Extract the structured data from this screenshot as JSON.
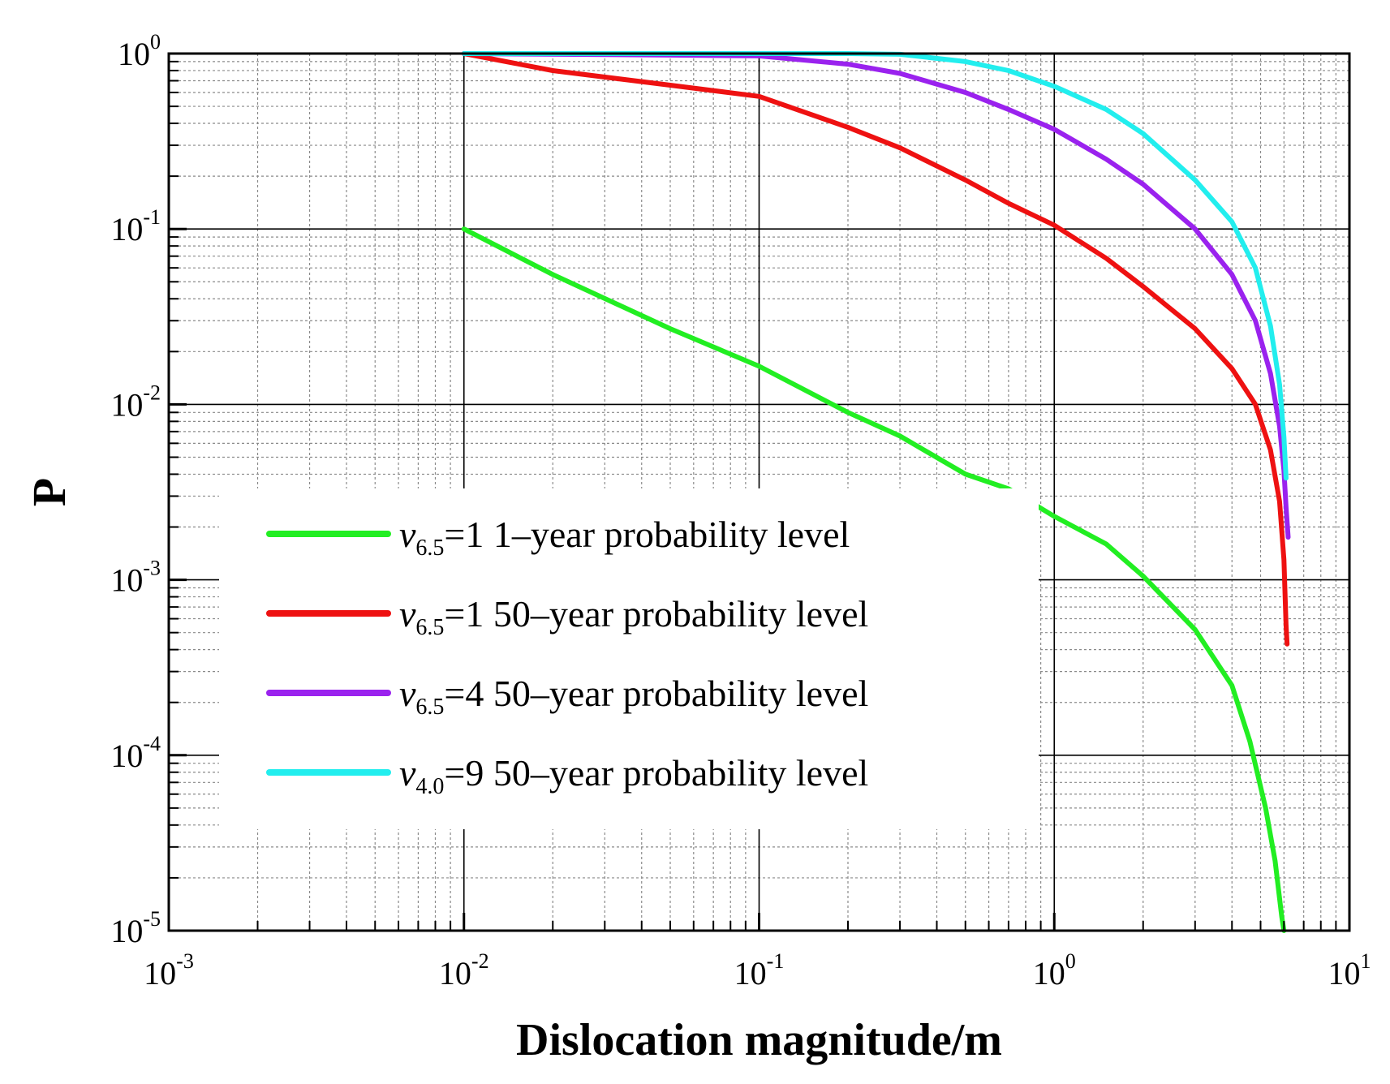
{
  "chart_data": {
    "type": "line",
    "xscale": "log",
    "yscale": "log",
    "xlabel": "Dislocation magnitude/m",
    "ylabel": "P",
    "xlim": [
      0.001,
      10
    ],
    "ylim": [
      1e-05,
      1
    ],
    "grid": true,
    "x_ticks": [
      {
        "base": "10",
        "exp": "-3",
        "value": 0.001
      },
      {
        "base": "10",
        "exp": "-2",
        "value": 0.01
      },
      {
        "base": "10",
        "exp": "-1",
        "value": 0.1
      },
      {
        "base": "10",
        "exp": "0",
        "value": 1
      },
      {
        "base": "10",
        "exp": "1",
        "value": 10
      }
    ],
    "y_ticks": [
      {
        "base": "10",
        "exp": "0",
        "value": 1
      },
      {
        "base": "10",
        "exp": "-1",
        "value": 0.1
      },
      {
        "base": "10",
        "exp": "-2",
        "value": 0.01
      },
      {
        "base": "10",
        "exp": "-3",
        "value": 0.001
      },
      {
        "base": "10",
        "exp": "-4",
        "value": 0.0001
      },
      {
        "base": "10",
        "exp": "-5",
        "value": 1e-05
      }
    ],
    "legend_position": "center-left",
    "series": [
      {
        "name": "v6.5=1 1–year probability level",
        "symbol": "v",
        "sub": "6.5",
        "rest": "=1 1–year probability level",
        "color": "#22ee22",
        "points": [
          [
            0.01,
            0.1
          ],
          [
            0.02,
            0.055
          ],
          [
            0.05,
            0.027
          ],
          [
            0.1,
            0.0165
          ],
          [
            0.2,
            0.009
          ],
          [
            0.3,
            0.0066
          ],
          [
            0.5,
            0.004
          ],
          [
            0.7,
            0.0033
          ],
          [
            1,
            0.0023
          ],
          [
            1.5,
            0.0016
          ],
          [
            2,
            0.00105
          ],
          [
            3,
            0.00052
          ],
          [
            4,
            0.00025
          ],
          [
            4.6,
            0.00012
          ],
          [
            5.2,
            5e-05
          ],
          [
            5.6,
            2.5e-05
          ],
          [
            5.9,
            1.2e-05
          ],
          [
            6.0,
            1e-05
          ]
        ]
      },
      {
        "name": "v6.5=1 50–year probability level",
        "symbol": "v",
        "sub": "6.5",
        "rest": "=1 50–year probability level",
        "color": "#ee1111",
        "points": [
          [
            0.01,
            1.0
          ],
          [
            0.02,
            0.8
          ],
          [
            0.05,
            0.66
          ],
          [
            0.1,
            0.57
          ],
          [
            0.2,
            0.38
          ],
          [
            0.3,
            0.29
          ],
          [
            0.5,
            0.19
          ],
          [
            0.7,
            0.14
          ],
          [
            1,
            0.105
          ],
          [
            1.5,
            0.068
          ],
          [
            2,
            0.047
          ],
          [
            3,
            0.027
          ],
          [
            4,
            0.016
          ],
          [
            4.8,
            0.01
          ],
          [
            5.4,
            0.0055
          ],
          [
            5.8,
            0.0028
          ],
          [
            6.0,
            0.0013
          ],
          [
            6.1,
            0.00055
          ],
          [
            6.15,
            0.00043
          ]
        ]
      },
      {
        "name": "v6.5=4 50–year probability level",
        "symbol": "v",
        "sub": "6.5",
        "rest": "=4 50–year probability level",
        "color": "#9a22ee",
        "points": [
          [
            0.01,
            1.0
          ],
          [
            0.05,
            0.98
          ],
          [
            0.1,
            0.97
          ],
          [
            0.2,
            0.87
          ],
          [
            0.3,
            0.77
          ],
          [
            0.5,
            0.6
          ],
          [
            0.7,
            0.48
          ],
          [
            1,
            0.37
          ],
          [
            1.5,
            0.25
          ],
          [
            2,
            0.18
          ],
          [
            3,
            0.1
          ],
          [
            4,
            0.055
          ],
          [
            4.8,
            0.03
          ],
          [
            5.4,
            0.015
          ],
          [
            5.8,
            0.0075
          ],
          [
            6.0,
            0.0042
          ],
          [
            6.1,
            0.0026
          ],
          [
            6.2,
            0.00175
          ]
        ]
      },
      {
        "name": "v4.0=9 50–year probability level",
        "symbol": "v",
        "sub": "4.0",
        "rest": "=9 50–year probability level",
        "color": "#22eeee",
        "points": [
          [
            0.01,
            1.0
          ],
          [
            0.1,
            1.0
          ],
          [
            0.2,
            1.0
          ],
          [
            0.3,
            0.99
          ],
          [
            0.5,
            0.9
          ],
          [
            0.7,
            0.8
          ],
          [
            1,
            0.65
          ],
          [
            1.5,
            0.48
          ],
          [
            2,
            0.35
          ],
          [
            3,
            0.19
          ],
          [
            4,
            0.11
          ],
          [
            4.8,
            0.06
          ],
          [
            5.4,
            0.028
          ],
          [
            5.8,
            0.013
          ],
          [
            6.0,
            0.0065
          ],
          [
            6.1,
            0.0038
          ]
        ]
      }
    ]
  }
}
